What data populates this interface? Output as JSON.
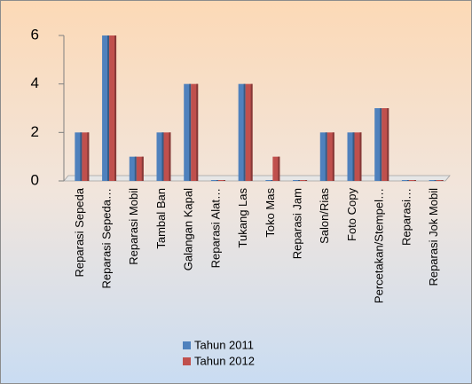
{
  "chart_data": {
    "type": "bar",
    "categories": [
      "Reparasi Sepeda",
      "Reparasi Sepeda…",
      "Reparasi Mobil",
      "Tambal Ban",
      "Galangan Kapal",
      "Reparasi Alat…",
      "Tukang Las",
      "Toko Mas",
      "Reparasi Jam",
      "Salon/Rias",
      "Foto Copy",
      "Percetakan/Stempel…",
      "Reparasi…",
      "Reparasi Jok Mobil"
    ],
    "series": [
      {
        "name": "Tahun 2011",
        "color": "#4f81bd",
        "values": [
          2,
          6,
          1,
          2,
          4,
          0,
          4,
          0,
          0,
          2,
          2,
          3,
          0,
          0
        ]
      },
      {
        "name": "Tahun 2012",
        "color": "#c0504d",
        "values": [
          2,
          6,
          1,
          2,
          4,
          0,
          4,
          1,
          0,
          2,
          2,
          3,
          0,
          0
        ]
      }
    ],
    "ylim": [
      0,
      6
    ],
    "yticks": [
      0,
      2,
      4,
      6
    ],
    "legend": "bottom"
  }
}
